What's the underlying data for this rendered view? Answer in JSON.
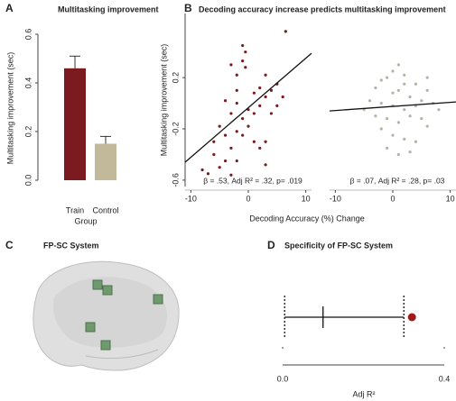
{
  "chart_data": [
    {
      "type": "bar",
      "panel": "A",
      "title": "Multitasking improvement",
      "y_label": "Multitasking improvement (sec)",
      "x_label": "Group",
      "categories": [
        "Train",
        "Control"
      ],
      "values": [
        0.46,
        0.15
      ],
      "errors": [
        0.05,
        0.03
      ],
      "colors": [
        "#7b1a1f",
        "#c2b99a"
      ],
      "ylim": [
        0,
        0.6
      ],
      "yticks": [
        {
          "value": 0,
          "label": "0.0"
        },
        0.2,
        0.4,
        0.6
      ]
    },
    {
      "type": "scatter",
      "panel": "B",
      "title": "Decoding accuracy increase predicts multitasking improvement",
      "y_label": "Multitasking improvement (sec)",
      "x_label": "Decoding Accuracy (%) Change",
      "xlim": [
        -11,
        11
      ],
      "xticks": [
        -10,
        0,
        10
      ],
      "ylim": [
        -0.65,
        0.7
      ],
      "yticks": [
        -0.6,
        -0.2,
        0.2
      ],
      "subplots": [
        {
          "color": "#7b1a1f",
          "annotation": "β = .53, Adj R² = .32, p= .019",
          "x": [
            -1,
            -0.5,
            -3,
            -2,
            2,
            3,
            5,
            6,
            3,
            1,
            -0.5,
            -1,
            6.5,
            -4,
            -2,
            0,
            1,
            2,
            4,
            5,
            -3,
            -5,
            -4,
            -6,
            -2,
            -1,
            0,
            1,
            2,
            3,
            -3,
            -6,
            -7,
            -8,
            -5,
            -4,
            -3,
            -2,
            3,
            -1,
            4,
            -2
          ],
          "y": [
            0.45,
            0.4,
            0.3,
            0.22,
            0.12,
            0.22,
            0.15,
            0.05,
            0.05,
            0.08,
            0.28,
            0.33,
            0.56,
            0.02,
            0,
            -0.05,
            -0.08,
            -0.02,
            -0.08,
            -0.02,
            -0.08,
            -0.18,
            -0.25,
            -0.3,
            -0.22,
            -0.12,
            -0.18,
            -0.3,
            -0.35,
            -0.3,
            -0.35,
            -0.4,
            -0.55,
            -0.52,
            -0.5,
            -0.45,
            -0.56,
            -0.45,
            -0.48,
            -0.25,
            0.1,
            0.1
          ],
          "fit": {
            "x": [
              -11,
              11
            ],
            "y": [
              -0.46,
              0.39
            ]
          }
        },
        {
          "color": "#b5b3a8",
          "annotation": "β  = .07, Adj R² = .28, p= .03",
          "x": [
            1,
            0,
            2,
            -1,
            4,
            6,
            -3,
            1,
            3,
            5,
            -2,
            0,
            2,
            -4,
            7,
            8,
            -3,
            -1,
            1,
            3,
            5,
            6,
            -2,
            0,
            2,
            4,
            -5,
            -1,
            1,
            3,
            6,
            -2,
            0,
            4,
            2
          ],
          "y": [
            0.3,
            0.25,
            0.22,
            0.2,
            0.15,
            0.1,
            0.12,
            0.1,
            0.05,
            0.02,
            0,
            -0.02,
            -0.05,
            0.02,
            0,
            -0.05,
            -0.1,
            -0.12,
            -0.15,
            -0.1,
            -0.12,
            -0.18,
            -0.2,
            -0.25,
            -0.28,
            -0.3,
            -0.05,
            -0.35,
            -0.4,
            -0.38,
            0.2,
            0.18,
            0.08,
            -0.02,
            0.15
          ],
          "fit": {
            "x": [
              -11,
              11
            ],
            "y": [
              -0.06,
              0.01
            ]
          }
        }
      ]
    },
    {
      "type": "image",
      "panel": "C",
      "title": "FP-SC System"
    },
    {
      "type": "interval",
      "panel": "D",
      "title": "Specificity of FP-SC System",
      "x_label": "Adj R²",
      "xlim": [
        0,
        0.4
      ],
      "xticks": [
        {
          "value": 0,
          "label": "0.0"
        },
        0.4
      ],
      "interval": [
        0.005,
        0.3
      ],
      "median": 0.1,
      "observed": 0.32,
      "color": "#a01c1c"
    }
  ]
}
